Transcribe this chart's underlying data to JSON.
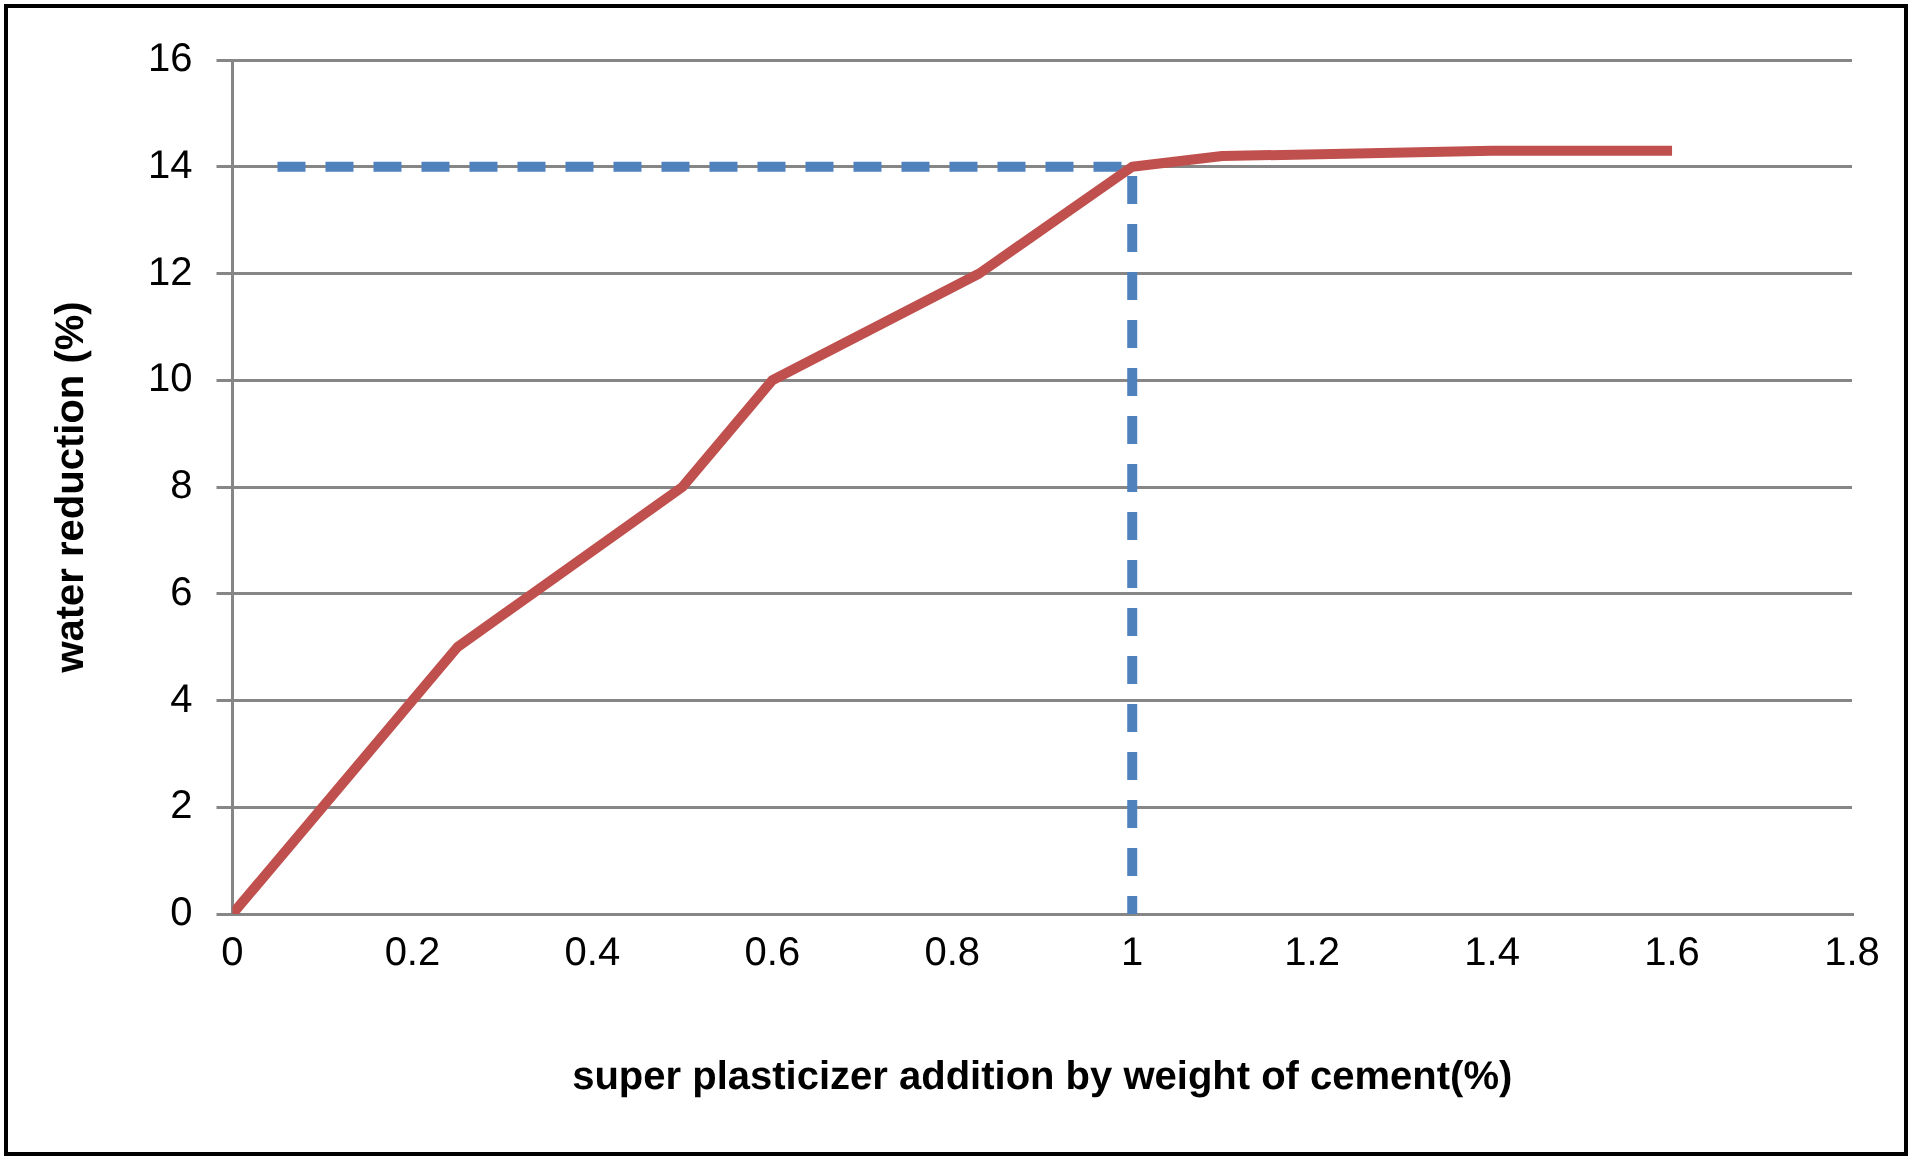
{
  "chart_data": {
    "type": "line",
    "xlabel": "super plasticizer addition by weight of cement(%)",
    "ylabel": "water reduction (%)",
    "xlim": [
      0,
      1.8
    ],
    "xticks": [
      0,
      0.2,
      0.4,
      0.6,
      0.8,
      1,
      1.2,
      1.4,
      1.6,
      1.8
    ],
    "ylim": [
      0,
      16
    ],
    "yticks": [
      0,
      2,
      4,
      6,
      8,
      10,
      12,
      14,
      16
    ],
    "grid": "y",
    "legend": false,
    "marker": "none",
    "series": [
      {
        "color": "#c0504d",
        "x": [
          0,
          0.25,
          0.5,
          0.6,
          0.83,
          1,
          1.1,
          1.4,
          1.6
        ],
        "values": [
          0,
          5,
          8,
          10,
          12,
          14,
          14.2,
          14.3,
          14.3
        ],
        "line_style": "solid"
      },
      {
        "color": "#4f81bd",
        "x": [
          0.05,
          1,
          1
        ],
        "values": [
          14,
          14,
          0
        ],
        "line_style": "dashed"
      }
    ]
  }
}
